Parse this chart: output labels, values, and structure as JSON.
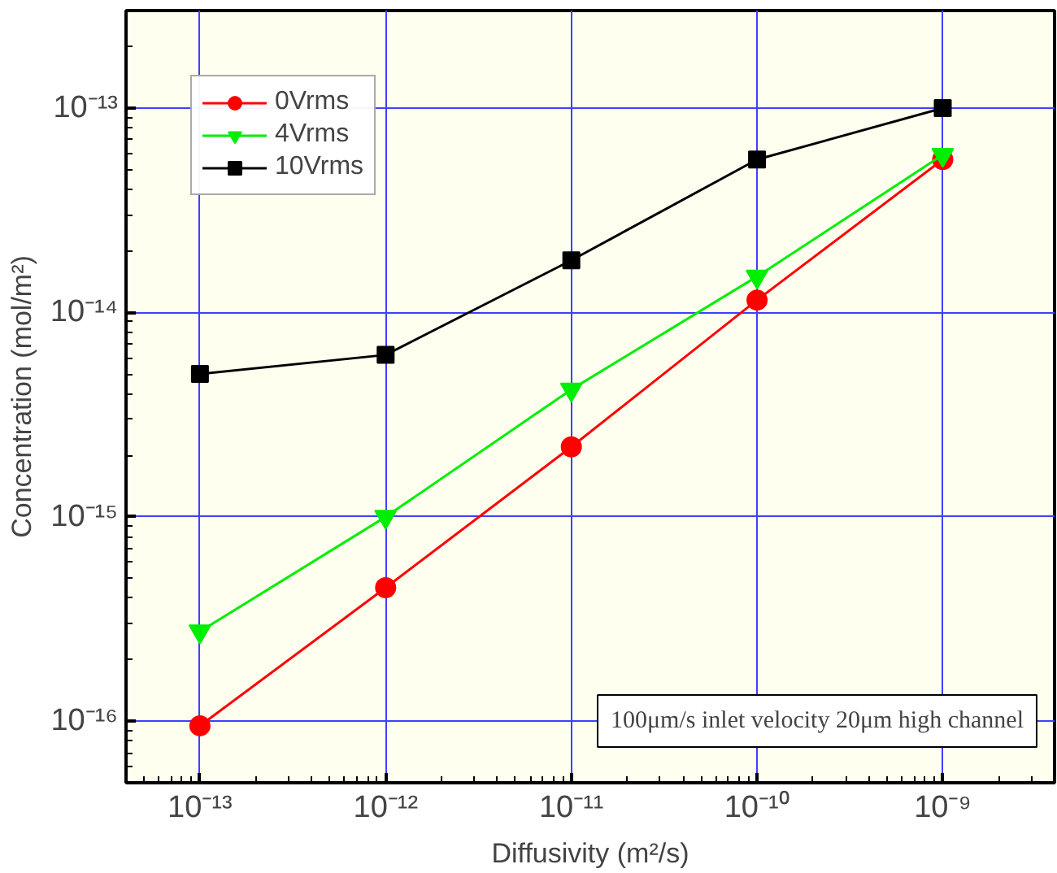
{
  "chart_data": {
    "type": "line",
    "xlabel": "Diffusivity (m²/s)",
    "ylabel": "Concentration (mol/m²)",
    "log": "xy",
    "grid": true,
    "legend": "top left",
    "x": [
      1e-13,
      1e-12,
      1e-11,
      1e-10,
      1e-09
    ],
    "xlim": [
      4e-14,
      4e-09
    ],
    "ylim": [
      5e-17,
      3e-13
    ],
    "xticks": [
      {
        "value": 1e-13,
        "label": "10⁻¹³"
      },
      {
        "value": 1e-12,
        "label": "10⁻¹²"
      },
      {
        "value": 1e-11,
        "label": "10⁻¹¹"
      },
      {
        "value": 1e-10,
        "label": "10⁻¹⁰"
      },
      {
        "value": 1e-09,
        "label": "10⁻⁹"
      }
    ],
    "yticks": [
      {
        "value": 1e-16,
        "label": "10⁻¹⁶"
      },
      {
        "value": 1e-15,
        "label": "10⁻¹⁵"
      },
      {
        "value": 1e-14,
        "label": "10⁻¹⁴"
      },
      {
        "value": 1e-13,
        "label": "10⁻¹³"
      }
    ],
    "series": [
      {
        "name": "0Vrms",
        "color": "#ff0000",
        "marker": "circle",
        "values": [
          9.5e-17,
          4.5e-16,
          2.2e-15,
          1.15e-14,
          5.6e-14
        ]
      },
      {
        "name": "4Vrms",
        "color": "#00ee00",
        "marker": "triangle",
        "values": [
          2.75e-16,
          1e-15,
          4.2e-15,
          1.5e-14,
          5.9e-14
        ]
      },
      {
        "name": "10Vrms",
        "color": "#000000",
        "marker": "square",
        "values": [
          5e-15,
          6.2e-15,
          1.8e-14,
          5.6e-14,
          1e-13
        ]
      }
    ],
    "annotations": [
      "100μm/s inlet velocity 20μm high channel"
    ]
  }
}
